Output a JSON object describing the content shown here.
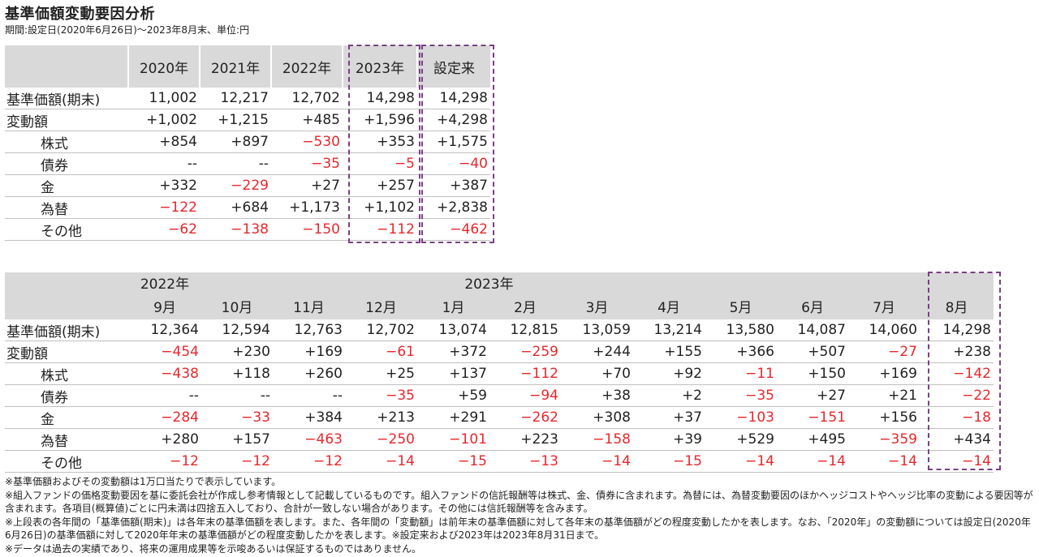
{
  "title": "基準価額変動要因分析",
  "subtitle": "期間:設定日(2020年6月26日)～2023年8月末、単位:円",
  "table1": {
    "columns": [
      "2020年",
      "2021年",
      "2022年",
      "2023年",
      "設定来"
    ],
    "rows": [
      {
        "label": "基準価額(期末)",
        "indent": false,
        "values": [
          "11,002",
          "12,217",
          "12,702",
          "14,298",
          "14,298"
        ]
      },
      {
        "label": "変動額",
        "indent": false,
        "values": [
          "+1,002",
          "+1,215",
          "+485",
          "+1,596",
          "+4,298"
        ]
      },
      {
        "label": "株式",
        "indent": true,
        "values": [
          "+854",
          "+897",
          "-530",
          "+353",
          "+1,575"
        ]
      },
      {
        "label": "債券",
        "indent": true,
        "values": [
          "--",
          "--",
          "-35",
          "-5",
          "-40"
        ]
      },
      {
        "label": "金",
        "indent": true,
        "values": [
          "+332",
          "-229",
          "+27",
          "+257",
          "+387"
        ]
      },
      {
        "label": "為替",
        "indent": true,
        "values": [
          "-122",
          "+684",
          "+1,173",
          "+1,102",
          "+2,838"
        ]
      },
      {
        "label": "その他",
        "indent": true,
        "values": [
          "-62",
          "-138",
          "-150",
          "-112",
          "-462"
        ]
      }
    ]
  },
  "table2": {
    "year_2022": "2022年",
    "year_2023": "2023年",
    "months": [
      "9月",
      "10月",
      "11月",
      "12月",
      "1月",
      "2月",
      "3月",
      "4月",
      "5月",
      "6月",
      "7月",
      "8月"
    ],
    "rows": [
      {
        "label": "基準価額(期末)",
        "indent": false,
        "values": [
          "12,364",
          "12,594",
          "12,763",
          "12,702",
          "13,074",
          "12,815",
          "13,059",
          "13,214",
          "13,580",
          "14,087",
          "14,060",
          "14,298"
        ]
      },
      {
        "label": "変動額",
        "indent": false,
        "values": [
          "-454",
          "+230",
          "+169",
          "-61",
          "+372",
          "-259",
          "+244",
          "+155",
          "+366",
          "+507",
          "-27",
          "+238"
        ]
      },
      {
        "label": "株式",
        "indent": true,
        "values": [
          "-438",
          "+118",
          "+260",
          "+25",
          "+137",
          "-112",
          "+70",
          "+92",
          "-11",
          "+150",
          "+169",
          "-142"
        ]
      },
      {
        "label": "債券",
        "indent": true,
        "values": [
          "--",
          "--",
          "--",
          "-35",
          "+59",
          "-94",
          "+38",
          "+2",
          "-35",
          "+27",
          "+21",
          "-22"
        ]
      },
      {
        "label": "金",
        "indent": true,
        "values": [
          "-284",
          "-33",
          "+384",
          "+213",
          "+291",
          "-262",
          "+308",
          "+37",
          "-103",
          "-151",
          "+156",
          "-18"
        ]
      },
      {
        "label": "為替",
        "indent": true,
        "values": [
          "+280",
          "+157",
          "-463",
          "-250",
          "-101",
          "+223",
          "-158",
          "+39",
          "+529",
          "+495",
          "-359",
          "+434"
        ]
      },
      {
        "label": "その他",
        "indent": true,
        "values": [
          "-12",
          "-12",
          "-12",
          "-14",
          "-15",
          "-13",
          "-14",
          "-15",
          "-14",
          "-14",
          "-14",
          "-14"
        ]
      }
    ]
  },
  "notes": [
    "※基準価額およびその変動額は1万口当たりで表示しています。",
    "※組入ファンドの価格変動要因を基に委託会社が作成し参考情報として記載しているものです。組入ファンドの信託報酬等は株式、金、債券に含まれます。為替には、為替変動要因のほかヘッジコストやヘッジ比率の変動による要因等が含まれます。各項目(概算値)ごとに円未満は四捨五入しており、合計が一致しない場合があります。その他には信託報酬等を含みます。",
    "※上段表の各年間の「基準価額(期末)」は各年末の基準価額を表します。また、各年間の「変動額」は前年末の基準価額に対して各年末の基準価額がどの程度変動したかを表します。なお、「2020年」の変動額については設定日(2020年6月26日)の基準価額に対して2020年年末の基準価額がどの程度変動したかを表します。※設定来および2023年は2023年8月31日まで。",
    "※データは過去の実績であり、将来の運用成果等を示唆あるいは保証するものではありません。"
  ],
  "colors": {
    "negative": "#e8272b",
    "highlight_border": "#7b3f86",
    "header_bg": "#d9d9d9"
  }
}
